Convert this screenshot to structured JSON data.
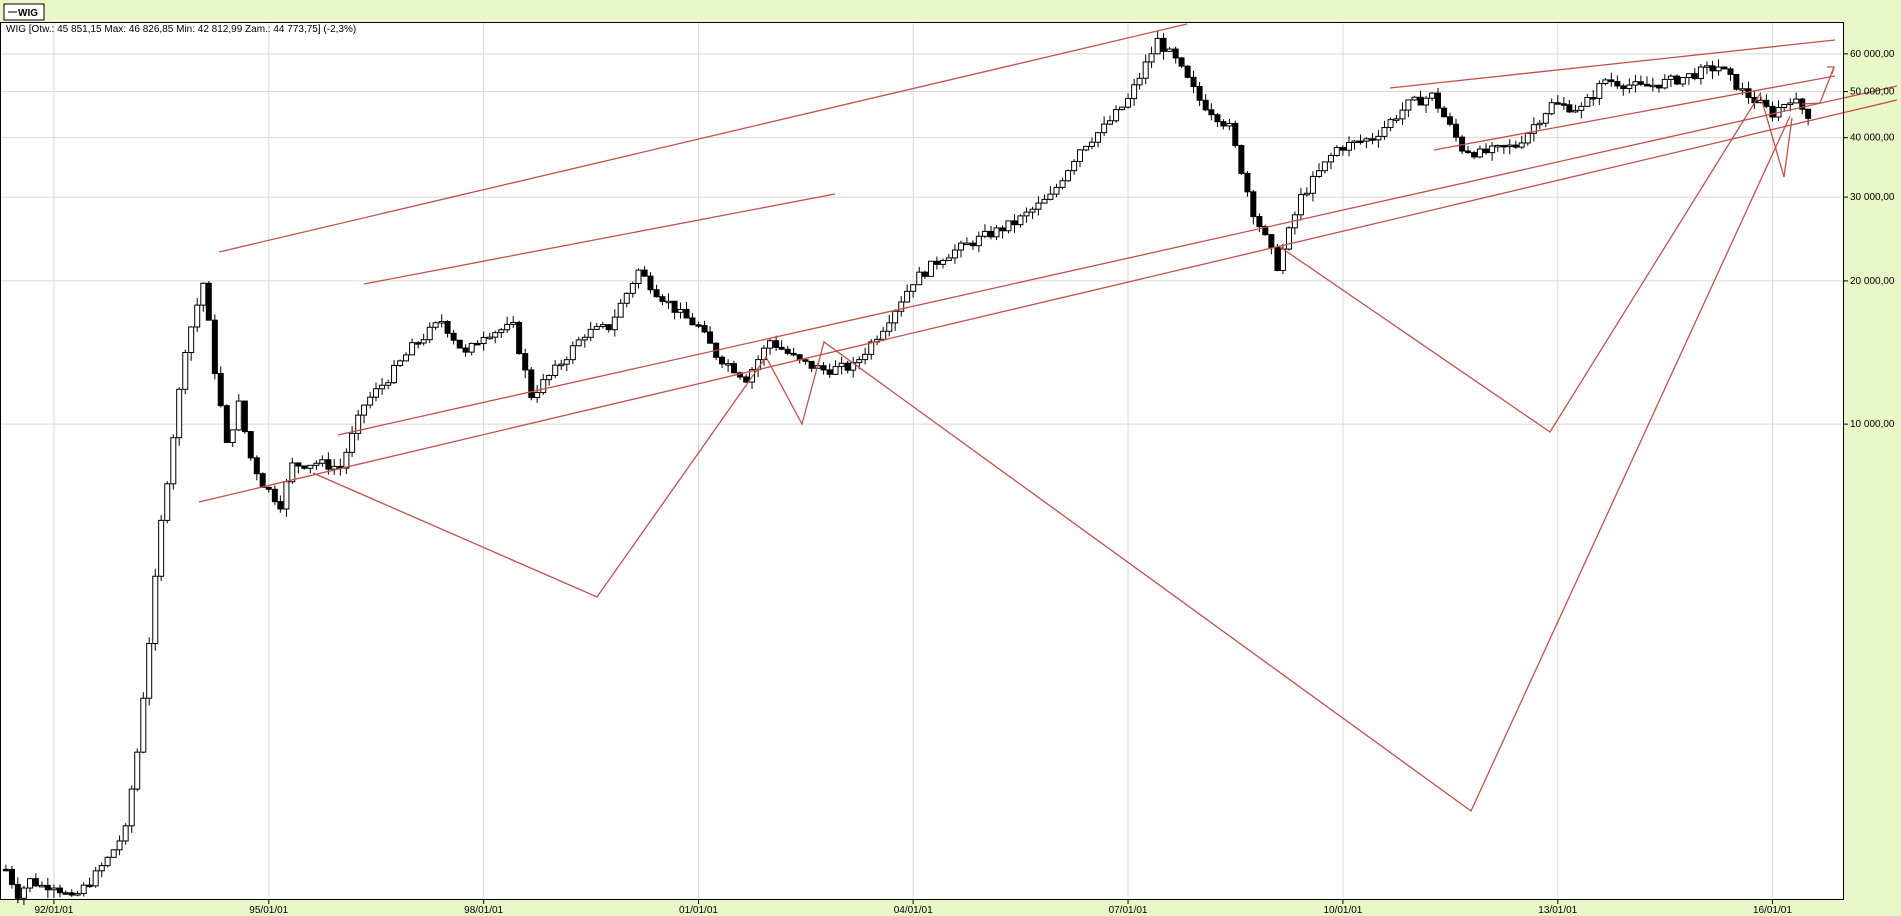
{
  "legend_label": "WIG",
  "info_line": "WIG [Otw.: 45 851,15  Max: 46 826,85  Min: 42 812,99  Zam.: 44 773,75] (-2,3%)",
  "colors": {
    "background": "#e8f6c8",
    "plot_background": "#ffffff",
    "grid": "#d8d8d8",
    "candle": "#000000",
    "trendline": "#c0504d"
  },
  "chart_data": {
    "type": "candlestick",
    "instrument": "WIG",
    "interval": "monthly",
    "x_range": [
      "1991-04-01",
      "2016-12-31"
    ],
    "y_scale": "log",
    "y_range": [
      1000,
      70000
    ],
    "grid": true,
    "x_ticks": [
      {
        "date": "1992-01-01",
        "label": "92/01/01"
      },
      {
        "date": "1995-01-01",
        "label": "95/01/01"
      },
      {
        "date": "1998-01-01",
        "label": "98/01/01"
      },
      {
        "date": "2001-01-01",
        "label": "01/01/01"
      },
      {
        "date": "2004-01-01",
        "label": "04/01/01"
      },
      {
        "date": "2007-01-01",
        "label": "07/01/01"
      },
      {
        "date": "2010-01-01",
        "label": "10/01/01"
      },
      {
        "date": "2013-01-01",
        "label": "13/01/01"
      },
      {
        "date": "2016-01-01",
        "label": "16/01/01"
      }
    ],
    "y_ticks": [
      {
        "value": 10000,
        "label": "10 000,00"
      },
      {
        "value": 20000,
        "label": "20 000,00"
      },
      {
        "value": 30000,
        "label": "30 000,00"
      },
      {
        "value": 40000,
        "label": "40 000,00"
      },
      {
        "value": 50000,
        "label": "50 000,00"
      },
      {
        "value": 60000,
        "label": "60 000,00"
      }
    ],
    "close_path": [
      [
        "1991-05-01",
        1160
      ],
      [
        "1991-07-01",
        1030
      ],
      [
        "1991-09-01",
        1100
      ],
      [
        "1991-11-01",
        1070
      ],
      [
        "1992-01-01",
        1080
      ],
      [
        "1992-04-01",
        1000
      ],
      [
        "1992-06-01",
        1060
      ],
      [
        "1992-08-01",
        1130
      ],
      [
        "1992-10-01",
        1220
      ],
      [
        "1993-01-01",
        1400
      ],
      [
        "1993-03-01",
        2050
      ],
      [
        "1993-05-01",
        3500
      ],
      [
        "1993-07-01",
        6200
      ],
      [
        "1993-09-01",
        9500
      ],
      [
        "1993-11-01",
        14500
      ],
      [
        "1994-02-01",
        19800
      ],
      [
        "1994-04-01",
        13000
      ],
      [
        "1994-06-01",
        9000
      ],
      [
        "1994-08-01",
        11000
      ],
      [
        "1994-10-01",
        8500
      ],
      [
        "1994-12-01",
        7500
      ],
      [
        "1995-03-01",
        6800
      ],
      [
        "1995-05-01",
        8200
      ],
      [
        "1995-09-01",
        8300
      ],
      [
        "1996-01-01",
        8100
      ],
      [
        "1996-05-01",
        11000
      ],
      [
        "1996-09-01",
        12500
      ],
      [
        "1997-01-01",
        14500
      ],
      [
        "1997-06-01",
        16500
      ],
      [
        "1997-10-01",
        14000
      ],
      [
        "1998-01-01",
        15500
      ],
      [
        "1998-06-01",
        16000
      ],
      [
        "1998-09-01",
        11500
      ],
      [
        "1999-01-01",
        13000
      ],
      [
        "1999-06-01",
        15500
      ],
      [
        "1999-10-01",
        16000
      ],
      [
        "2000-03-01",
        21000
      ],
      [
        "2000-06-01",
        19000
      ],
      [
        "2000-10-01",
        17000
      ],
      [
        "2001-01-01",
        16000
      ],
      [
        "2001-04-01",
        14000
      ],
      [
        "2001-09-01",
        12500
      ],
      [
        "2002-01-01",
        15000
      ],
      [
        "2002-06-01",
        13500
      ],
      [
        "2002-10-01",
        13000
      ],
      [
        "2003-03-01",
        13200
      ],
      [
        "2003-08-01",
        16000
      ],
      [
        "2004-01-01",
        20000
      ],
      [
        "2004-06-01",
        22500
      ],
      [
        "2004-12-01",
        24500
      ],
      [
        "2005-06-01",
        26500
      ],
      [
        "2005-12-01",
        30000
      ],
      [
        "2006-05-01",
        38000
      ],
      [
        "2006-09-01",
        42000
      ],
      [
        "2007-01-01",
        48000
      ],
      [
        "2007-06-01",
        64000
      ],
      [
        "2007-09-01",
        58000
      ],
      [
        "2008-01-01",
        48000
      ],
      [
        "2008-06-01",
        42000
      ],
      [
        "2008-10-01",
        28000
      ],
      [
        "2009-02-01",
        21500
      ],
      [
        "2009-06-01",
        30000
      ],
      [
        "2009-12-01",
        38000
      ],
      [
        "2010-06-01",
        40000
      ],
      [
        "2010-12-01",
        47000
      ],
      [
        "2011-04-01",
        49000
      ],
      [
        "2011-09-01",
        38000
      ],
      [
        "2011-12-01",
        37000
      ],
      [
        "2012-06-01",
        38500
      ],
      [
        "2012-12-01",
        47000
      ],
      [
        "2013-05-01",
        46000
      ],
      [
        "2013-09-01",
        53000
      ],
      [
        "2014-03-01",
        51000
      ],
      [
        "2014-09-01",
        53000
      ],
      [
        "2015-04-01",
        56500
      ],
      [
        "2015-08-01",
        50000
      ],
      [
        "2016-01-01",
        45000
      ],
      [
        "2016-04-01",
        48500
      ],
      [
        "2016-07-01",
        44800
      ]
    ]
  }
}
